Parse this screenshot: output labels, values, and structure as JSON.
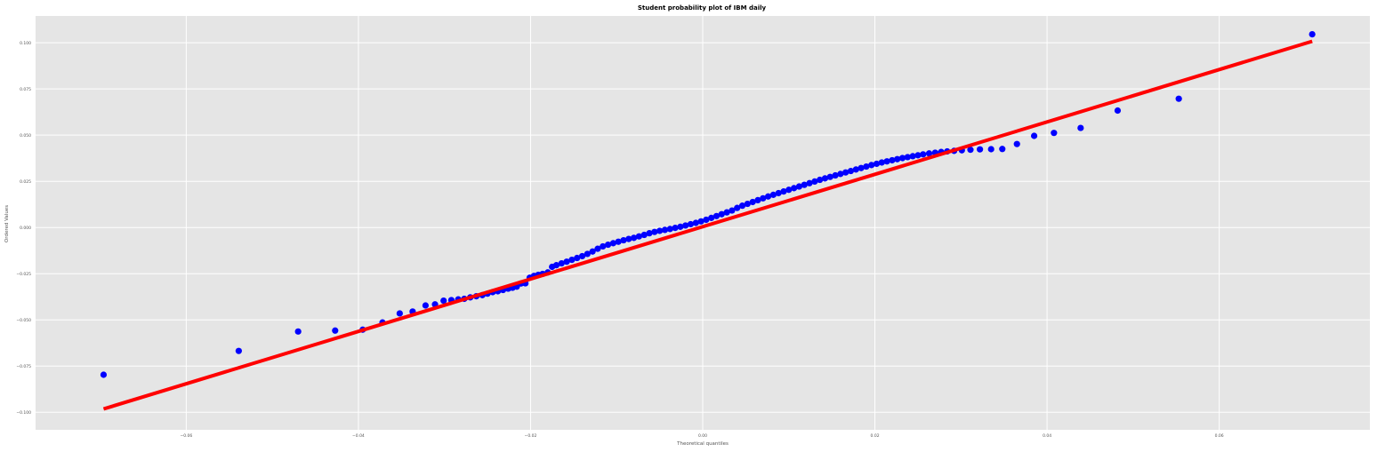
{
  "chart_data": {
    "type": "scatter",
    "title": "Student probability plot of IBM daily",
    "xlabel": "Theoretical quantiles",
    "ylabel": "Ordered Values",
    "xlim": [
      -0.0775,
      0.0775
    ],
    "ylim": [
      -0.1095,
      0.1145
    ],
    "grid": true,
    "xticks": [
      -0.06,
      -0.04,
      -0.02,
      0.0,
      0.02,
      0.04,
      0.06
    ],
    "xtick_labels": [
      "−0.06",
      "−0.04",
      "−0.02",
      "0.00",
      "0.02",
      "0.04",
      "0.06"
    ],
    "yticks": [
      -0.1,
      -0.075,
      -0.05,
      -0.025,
      0.0,
      0.025,
      0.05,
      0.075,
      0.1
    ],
    "ytick_labels": [
      "−0.100",
      "−0.075",
      "−0.050",
      "−0.025",
      "0.000",
      "0.025",
      "0.050",
      "0.075",
      "0.100"
    ],
    "colors": {
      "background": "#e5e5e5",
      "grid": "#ffffff",
      "points": "#0000ff",
      "fit_line": "#ff0000"
    },
    "series": [
      {
        "type": "scatter",
        "x": [
          -0.0696,
          -0.0539,
          -0.047,
          -0.0427,
          -0.0395,
          -0.0372,
          -0.0352,
          -0.0337,
          -0.0322,
          -0.0311,
          -0.0301,
          -0.0292,
          -0.0284,
          -0.0277,
          -0.027,
          -0.0263,
          -0.0256,
          -0.025,
          -0.0244,
          -0.0238,
          -0.0232,
          -0.0226,
          -0.0221,
          -0.0216,
          -0.0211,
          -0.0206,
          -0.0201,
          -0.0196,
          -0.0191,
          -0.0186,
          -0.018,
          -0.0175,
          -0.017,
          -0.0164,
          -0.0158,
          -0.0152,
          -0.0146,
          -0.014,
          -0.0134,
          -0.0128,
          -0.0122,
          -0.0116,
          -0.011,
          -0.0104,
          -0.0098,
          -0.0092,
          -0.0086,
          -0.008,
          -0.0074,
          -0.0068,
          -0.0062,
          -0.0056,
          -0.005,
          -0.0044,
          -0.0038,
          -0.0032,
          -0.0026,
          -0.002,
          -0.0014,
          -0.0008,
          -0.0002,
          0.0004,
          0.001,
          0.0016,
          0.0022,
          0.0028,
          0.0034,
          0.004,
          0.0046,
          0.0052,
          0.0058,
          0.0064,
          0.007,
          0.0076,
          0.0082,
          0.0088,
          0.0094,
          0.01,
          0.0106,
          0.0112,
          0.0118,
          0.0124,
          0.013,
          0.0136,
          0.0142,
          0.0148,
          0.0154,
          0.016,
          0.0166,
          0.0172,
          0.0178,
          0.0184,
          0.019,
          0.0196,
          0.0202,
          0.0208,
          0.0214,
          0.022,
          0.0226,
          0.0232,
          0.0238,
          0.0244,
          0.025,
          0.0256,
          0.0263,
          0.027,
          0.0277,
          0.0284,
          0.0292,
          0.0301,
          0.0311,
          0.0322,
          0.0335,
          0.0348,
          0.0365,
          0.0385,
          0.0408,
          0.0439,
          0.0482,
          0.0553,
          0.0708
        ],
        "y": [
          -0.0797,
          -0.0668,
          -0.0563,
          -0.0558,
          -0.0553,
          -0.0514,
          -0.0465,
          -0.0455,
          -0.0422,
          -0.0416,
          -0.0396,
          -0.0393,
          -0.0389,
          -0.0386,
          -0.0378,
          -0.0372,
          -0.0366,
          -0.0358,
          -0.035,
          -0.0345,
          -0.0338,
          -0.0331,
          -0.0326,
          -0.032,
          -0.0303,
          -0.0302,
          -0.0272,
          -0.0262,
          -0.0256,
          -0.0251,
          -0.0243,
          -0.0213,
          -0.0204,
          -0.0194,
          -0.0185,
          -0.0175,
          -0.0165,
          -0.0155,
          -0.0143,
          -0.013,
          -0.0115,
          -0.0102,
          -0.0093,
          -0.0085,
          -0.0077,
          -0.0069,
          -0.0062,
          -0.0056,
          -0.0048,
          -0.004,
          -0.0031,
          -0.0024,
          -0.0018,
          -0.0013,
          -0.0008,
          -0.0002,
          0.0004,
          0.0011,
          0.0018,
          0.0025,
          0.0033,
          0.0042,
          0.0052,
          0.0062,
          0.0072,
          0.0082,
          0.0092,
          0.0106,
          0.0118,
          0.0128,
          0.0138,
          0.0148,
          0.0158,
          0.0168,
          0.0177,
          0.0186,
          0.0195,
          0.0204,
          0.0213,
          0.0222,
          0.0231,
          0.024,
          0.0249,
          0.0258,
          0.0266,
          0.0274,
          0.0282,
          0.029,
          0.0298,
          0.0306,
          0.0314,
          0.0322,
          0.033,
          0.0338,
          0.0345,
          0.0352,
          0.0358,
          0.0364,
          0.037,
          0.0376,
          0.0381,
          0.0386,
          0.0391,
          0.0396,
          0.0401,
          0.0405,
          0.0409,
          0.0412,
          0.0415,
          0.0418,
          0.0421,
          0.0423,
          0.0424,
          0.0425,
          0.0452,
          0.0496,
          0.0512,
          0.0539,
          0.0633,
          0.0697,
          0.1046
        ]
      },
      {
        "type": "line",
        "x": [
          -0.0696,
          0.0708
        ],
        "y": [
          -0.0982,
          0.1008
        ]
      }
    ]
  }
}
